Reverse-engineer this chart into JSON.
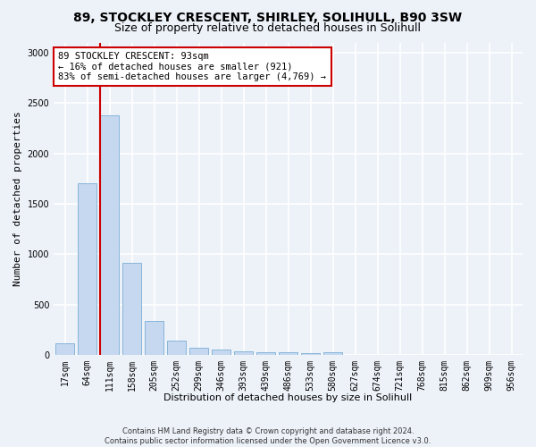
{
  "title_line1": "89, STOCKLEY CRESCENT, SHIRLEY, SOLIHULL, B90 3SW",
  "title_line2": "Size of property relative to detached houses in Solihull",
  "xlabel": "Distribution of detached houses by size in Solihull",
  "ylabel": "Number of detached properties",
  "categories": [
    "17sqm",
    "64sqm",
    "111sqm",
    "158sqm",
    "205sqm",
    "252sqm",
    "299sqm",
    "346sqm",
    "393sqm",
    "439sqm",
    "486sqm",
    "533sqm",
    "580sqm",
    "627sqm",
    "674sqm",
    "721sqm",
    "768sqm",
    "815sqm",
    "862sqm",
    "909sqm",
    "956sqm"
  ],
  "values": [
    120,
    1700,
    2380,
    910,
    340,
    140,
    75,
    50,
    35,
    30,
    25,
    20,
    28,
    5,
    5,
    5,
    0,
    0,
    0,
    0,
    0
  ],
  "bar_color": "#c5d8f0",
  "bar_edge_color": "#7aaed4",
  "annotation_line1": "89 STOCKLEY CRESCENT: 93sqm",
  "annotation_line2": "← 16% of detached houses are smaller (921)",
  "annotation_line3": "83% of semi-detached houses are larger (4,769) →",
  "annotation_box_facecolor": "#ffffff",
  "annotation_box_edgecolor": "#cc0000",
  "red_line_color": "#cc0000",
  "ylim": [
    0,
    3100
  ],
  "yticks": [
    0,
    500,
    1000,
    1500,
    2000,
    2500,
    3000
  ],
  "footer1": "Contains HM Land Registry data © Crown copyright and database right 2024.",
  "footer2": "Contains public sector information licensed under the Open Government Licence v3.0.",
  "bg_color": "#edf2f9",
  "plot_bg_color": "#edf2f9",
  "grid_color": "#ffffff",
  "title_fontsize": 10,
  "subtitle_fontsize": 9,
  "ylabel_fontsize": 8,
  "xlabel_fontsize": 8,
  "tick_fontsize": 7,
  "footer_fontsize": 6,
  "annot_fontsize": 7.5
}
